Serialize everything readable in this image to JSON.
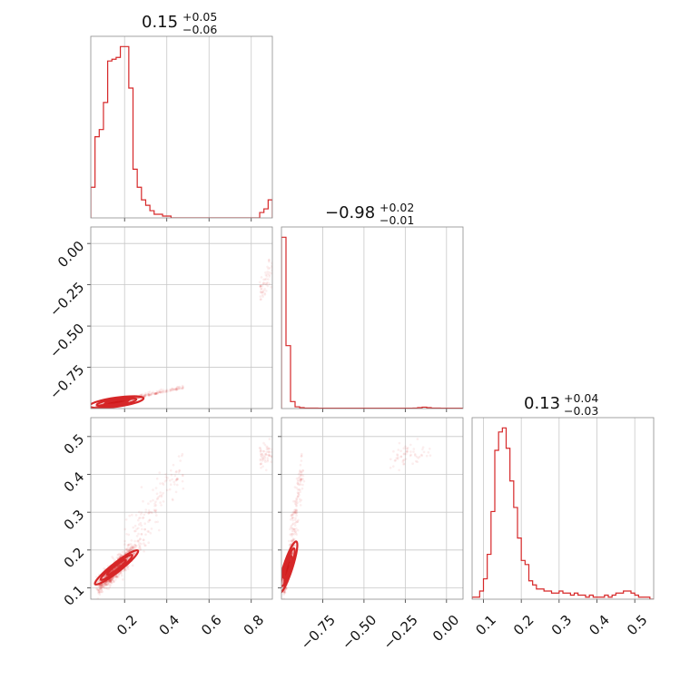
{
  "chart_data": {
    "type": "corner",
    "color": "#d62728",
    "variables": [
      {
        "range": [
          0.04,
          0.9
        ],
        "ticks": [
          0.2,
          0.4,
          0.6,
          0.8
        ],
        "tick_labels": [
          "0.2",
          "0.4",
          "0.6",
          "0.8"
        ],
        "title": {
          "median": "0.15",
          "plus": "+0.05",
          "minus": "−0.06"
        },
        "hist_bins": 43,
        "hist_counts": [
          17,
          45,
          49,
          64,
          87,
          88,
          89,
          95,
          95,
          72,
          27,
          17,
          10,
          7,
          4,
          2,
          2,
          1,
          1,
          0,
          0,
          0,
          0,
          0,
          0,
          0,
          0,
          0,
          0,
          0,
          0,
          0,
          0,
          0,
          0,
          0,
          0,
          0,
          0,
          0,
          3,
          5,
          10
        ]
      },
      {
        "range": [
          -1.0,
          0.1
        ],
        "ticks": [
          -0.75,
          -0.5,
          -0.25,
          0.0
        ],
        "tick_labels": [
          "−0.75",
          "−0.50",
          "−0.25",
          "0.00"
        ],
        "title": {
          "median": "−0.98",
          "plus": "+0.02",
          "minus": "−0.01"
        },
        "hist_bins": 40,
        "hist_counts": [
          98,
          36,
          4,
          1,
          0.5,
          0.3,
          0.3,
          0.3,
          0.2,
          0.2,
          0.2,
          0.2,
          0.2,
          0.2,
          0.2,
          0.2,
          0.2,
          0.2,
          0.2,
          0.2,
          0.2,
          0.2,
          0.2,
          0.2,
          0.2,
          0.2,
          0.2,
          0.2,
          0.2,
          0.3,
          0.5,
          0.8,
          0.5,
          0.3,
          0.3,
          0.2,
          0.2,
          0.2,
          0.2,
          0.2
        ]
      },
      {
        "range": [
          0.07,
          0.55
        ],
        "ticks": [
          0.1,
          0.2,
          0.3,
          0.4,
          0.5
        ],
        "tick_labels": [
          "0.1",
          "0.2",
          "0.3",
          "0.4",
          "0.5"
        ],
        "title": {
          "median": "0.13",
          "plus": "+0.04",
          "minus": "−0.03"
        },
        "hist_bins": 48,
        "hist_counts": [
          1,
          1,
          4,
          10,
          22,
          43,
          73,
          82,
          84,
          74,
          58,
          45,
          30,
          19,
          17,
          9,
          7,
          5,
          5,
          4,
          4,
          3,
          3,
          4,
          3,
          3,
          2,
          3,
          2,
          2,
          1,
          2,
          1,
          1,
          1,
          2,
          1,
          2,
          3,
          3,
          4,
          4,
          3,
          2,
          1,
          1,
          1,
          0
        ]
      }
    ]
  }
}
